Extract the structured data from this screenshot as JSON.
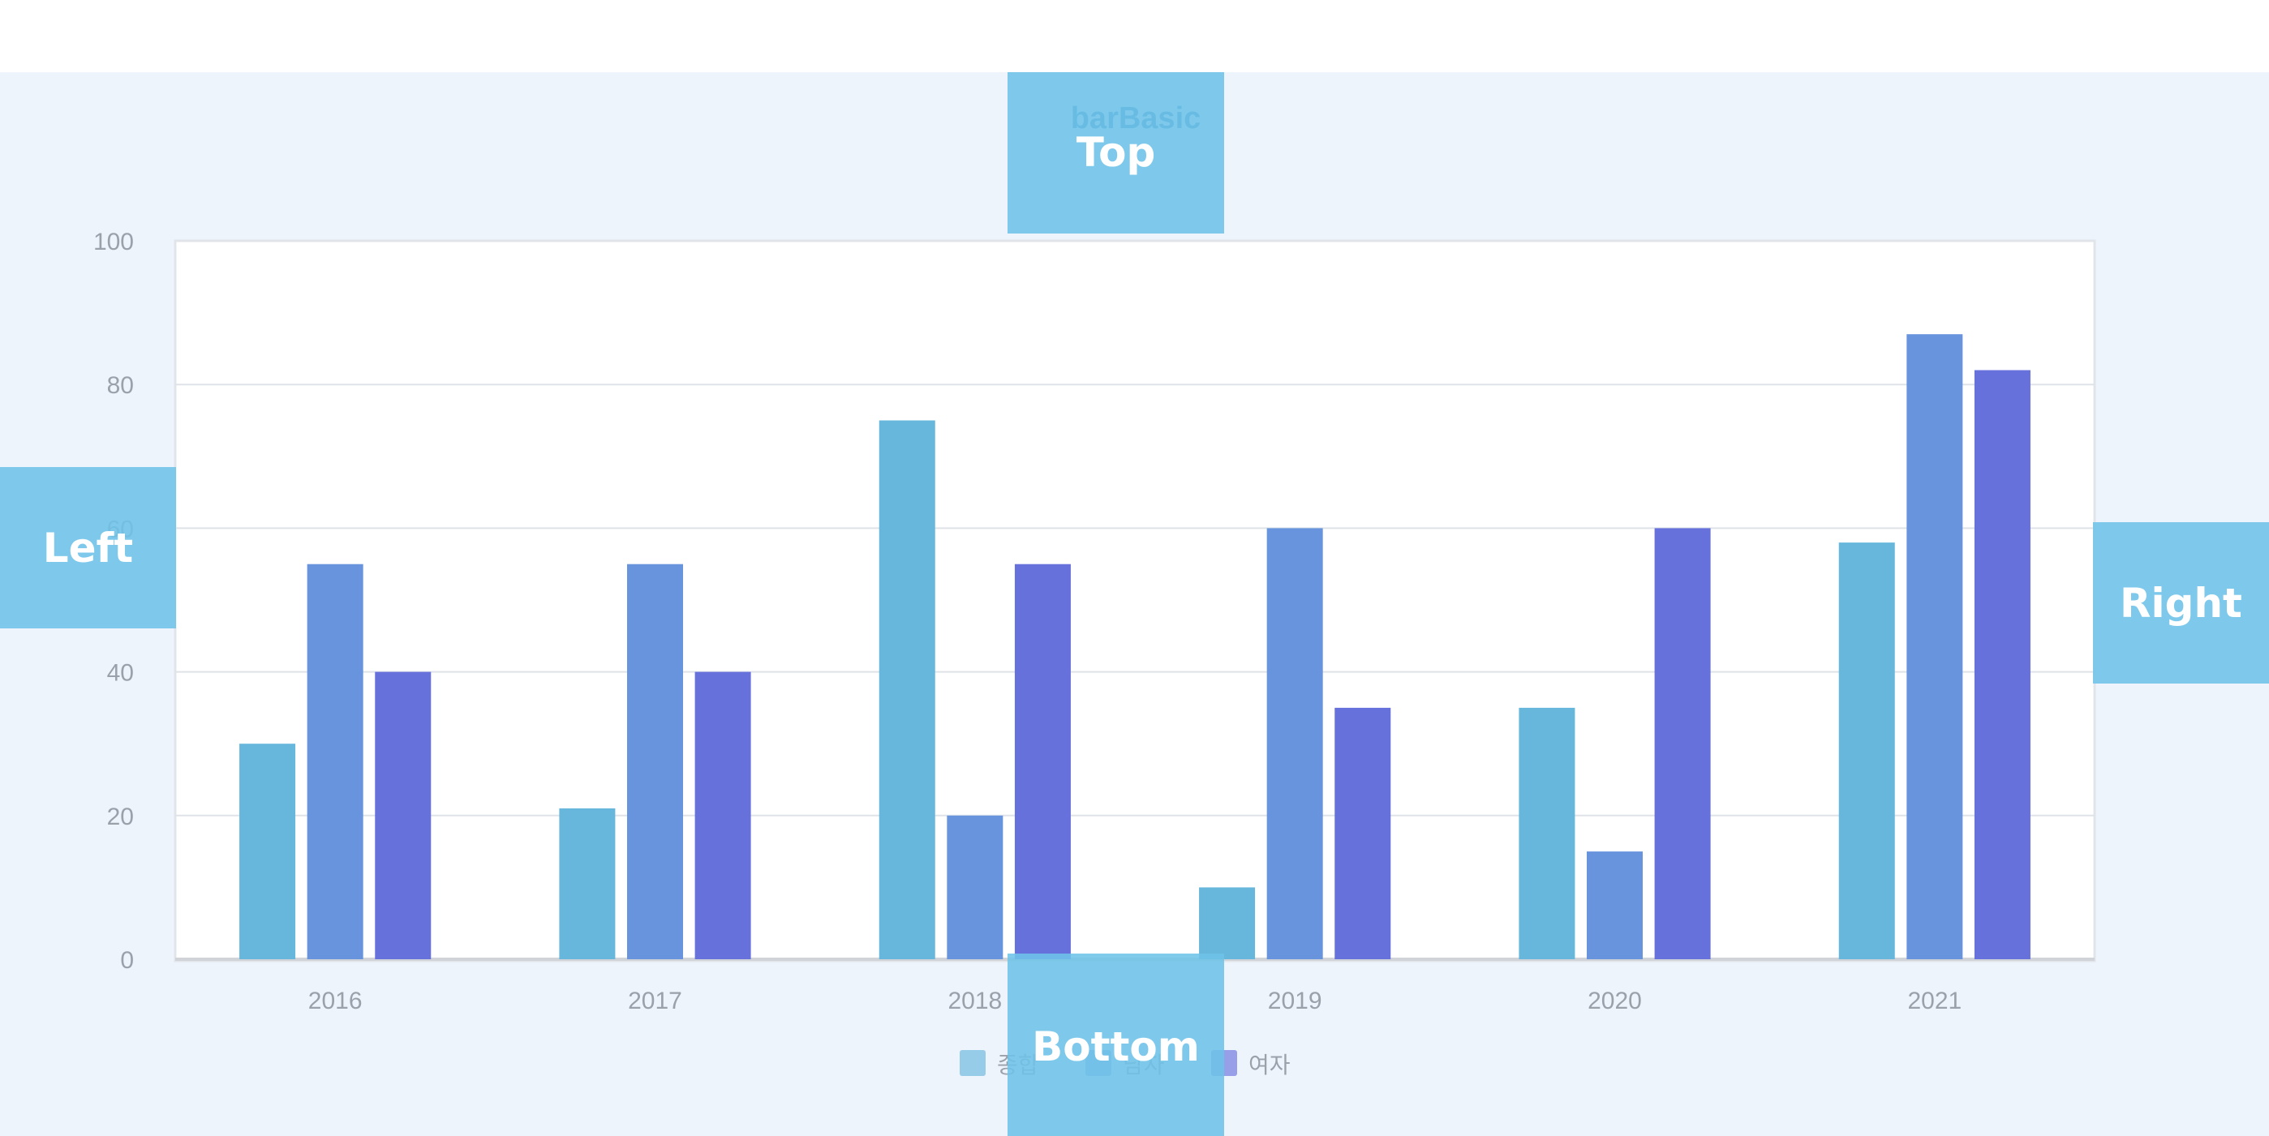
{
  "colors": {
    "background": "#edf4fc",
    "plot_background": "#ffffff",
    "grid": "#dfe3e8",
    "axis": "#d0d4d9",
    "tick_text": "#9aa1aa",
    "title_text": "#3d8fbd",
    "overlay": "#6ec3e8",
    "series": [
      "#67b7dc",
      "#6794dc",
      "#6771dc"
    ]
  },
  "overlays": {
    "top": "Top",
    "left": "Left",
    "right": "Right",
    "bottom": "Bottom"
  },
  "chart_data": {
    "type": "bar",
    "title": "barBasic",
    "xlabel": "",
    "ylabel": "",
    "categories": [
      "2016",
      "2017",
      "2018",
      "2019",
      "2020",
      "2021"
    ],
    "series": [
      {
        "name": "종합",
        "values": [
          30,
          21,
          75,
          10,
          35,
          58
        ]
      },
      {
        "name": "남자",
        "values": [
          55,
          55,
          20,
          60,
          15,
          87
        ]
      },
      {
        "name": "여자",
        "values": [
          40,
          40,
          55,
          35,
          60,
          82
        ]
      }
    ],
    "ylim": [
      0,
      100
    ],
    "yticks": [
      0,
      20,
      40,
      60,
      80,
      100
    ],
    "grid": true,
    "legend": "bottom-center"
  }
}
